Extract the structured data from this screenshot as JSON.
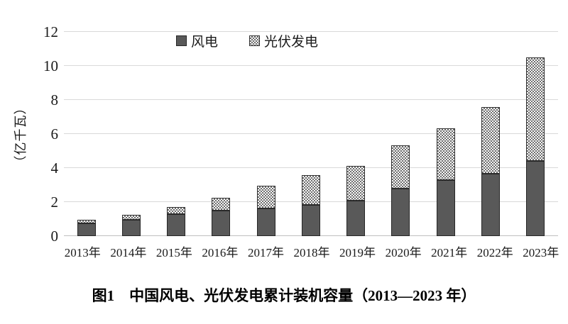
{
  "chart_data": {
    "type": "bar",
    "stacked": true,
    "categories": [
      "2013年",
      "2014年",
      "2015年",
      "2016年",
      "2017年",
      "2018年",
      "2019年",
      "2020年",
      "2021年",
      "2022年",
      "2023年"
    ],
    "series": [
      {
        "name": "风电",
        "values": [
          0.77,
          0.96,
          1.29,
          1.49,
          1.64,
          1.84,
          2.1,
          2.81,
          3.28,
          3.65,
          4.41
        ],
        "fill": "solid",
        "color": "#595959"
      },
      {
        "name": "光伏发电",
        "values": [
          0.19,
          0.28,
          0.43,
          0.77,
          1.3,
          1.74,
          2.04,
          2.53,
          3.06,
          3.93,
          6.09
        ],
        "fill": "dot-pattern",
        "pattern_dark": "#6f6f6f",
        "pattern_light": "#f8f8f8"
      }
    ],
    "title": "图1　中国风电、光伏发电累计装机容量（2013—2023 年）",
    "xlabel": "",
    "ylabel": "（亿千瓦）",
    "ylim": [
      0,
      12
    ],
    "yticks": [
      0,
      2,
      4,
      6,
      8,
      10,
      12
    ],
    "grid": true,
    "gridline_color": "#d9d9d9",
    "legend_position": "top-center"
  },
  "legend": {
    "wind_label": "风电",
    "solar_label": "光伏发电"
  },
  "caption": "图1　中国风电、光伏发电累计装机容量（2013—2023 年）"
}
